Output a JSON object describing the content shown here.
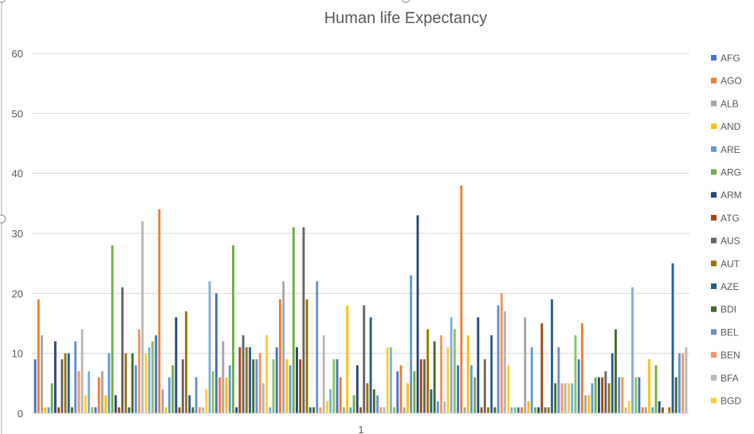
{
  "chart_data": {
    "type": "bar",
    "title": "Human life Expectancy",
    "xlabel": "",
    "ylabel": "",
    "ylim": [
      0,
      60
    ],
    "y_ticks": [
      0,
      10,
      20,
      30,
      40,
      50,
      60
    ],
    "x_category": "1",
    "grid": true,
    "legend_position": "right",
    "legend_series_shown": [
      "AFG",
      "AGO",
      "ALB",
      "AND",
      "ARE",
      "ARG",
      "ARM",
      "ATG",
      "AUS",
      "AUT",
      "AZE",
      "BDI",
      "BEL",
      "BEN",
      "BFA",
      "BGD"
    ],
    "palette": [
      "#4472C4",
      "#ED7D31",
      "#A5A5A5",
      "#FFC000",
      "#5B9BD5",
      "#70AD47",
      "#264478",
      "#9E480E",
      "#636363",
      "#997300",
      "#255E91",
      "#43682B",
      "#698ED0",
      "#F1975A",
      "#B7B7B7",
      "#FFCD33",
      "#7CAFDD",
      "#8CC168"
    ],
    "values": [
      9,
      19,
      13,
      1,
      1,
      5,
      12,
      1,
      9,
      10,
      10,
      1,
      12,
      7,
      14,
      3,
      7,
      1,
      1,
      6,
      7,
      3,
      10,
      28,
      3,
      1,
      21,
      10,
      1,
      10,
      8,
      14,
      32,
      10,
      11,
      12,
      13,
      34,
      4,
      1,
      6,
      8,
      16,
      1,
      9,
      17,
      3,
      1,
      6,
      1,
      1,
      4,
      22,
      7,
      20,
      6,
      12,
      6,
      8,
      28,
      1,
      11,
      13,
      11,
      11,
      9,
      9,
      10,
      5,
      13,
      1,
      9,
      11,
      19,
      22,
      9,
      8,
      31,
      11,
      9,
      31,
      19,
      1,
      1,
      22,
      1,
      13,
      2,
      4,
      9,
      9,
      6,
      1,
      18,
      1,
      3,
      8,
      1,
      18,
      5,
      16,
      4,
      3,
      1,
      1,
      11,
      11,
      1,
      7,
      8,
      1,
      5,
      23,
      7,
      33,
      9,
      9,
      14,
      4,
      12,
      2,
      13,
      2,
      11,
      16,
      14,
      8,
      38,
      1,
      13,
      8,
      6,
      16,
      1,
      9,
      1,
      13,
      1,
      18,
      20,
      17,
      8,
      1,
      1,
      1,
      1,
      16,
      2,
      11,
      1,
      1,
      15,
      1,
      1,
      19,
      5,
      11,
      5,
      5,
      5,
      5,
      13,
      9,
      15,
      3,
      3,
      5,
      6,
      6,
      6,
      7,
      5,
      10,
      14,
      6,
      6,
      1,
      2,
      21,
      6,
      6,
      1,
      1,
      9,
      1,
      8,
      2,
      1,
      0,
      1,
      25,
      6,
      10,
      10,
      11
    ]
  }
}
